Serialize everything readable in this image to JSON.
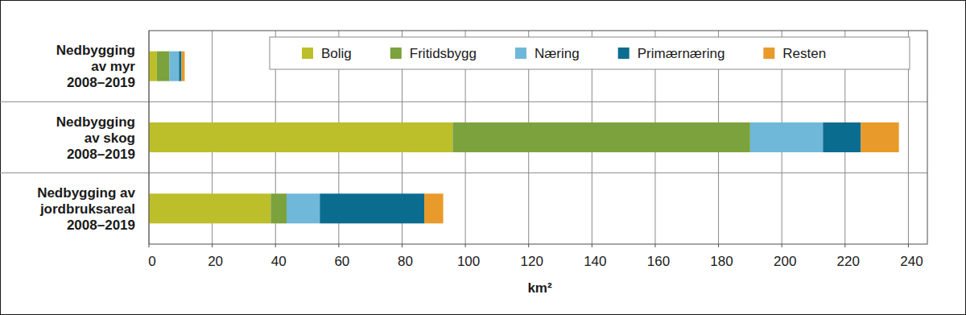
{
  "chart_data": {
    "type": "bar",
    "orientation": "horizontal",
    "stacked": true,
    "categories": [
      "Nedbygging\nav myr\n2008–2019",
      "Nedbygging\nav skog\n2008–2019",
      "Nedbygging av\njordbruksareal\n2008–2019"
    ],
    "series": [
      {
        "name": "Bolig",
        "color": "#bcbe2a",
        "values": [
          2.5,
          96,
          38.5
        ]
      },
      {
        "name": "Fritidsbygg",
        "color": "#7ba23c",
        "values": [
          4,
          94,
          5
        ]
      },
      {
        "name": "Næring",
        "color": "#6fb8d9",
        "values": [
          3,
          23,
          10.5
        ]
      },
      {
        "name": "Primærnæring",
        "color": "#0a6d8f",
        "values": [
          0.8,
          12,
          33
        ]
      },
      {
        "name": "Resten",
        "color": "#e89a2a",
        "values": [
          1,
          12,
          6
        ]
      }
    ],
    "xlabel": "km²",
    "xlim": [
      0,
      246
    ],
    "xticks": [
      0,
      20,
      40,
      60,
      80,
      100,
      120,
      140,
      160,
      180,
      200,
      220,
      240
    ],
    "grid": true,
    "legend": "top"
  }
}
